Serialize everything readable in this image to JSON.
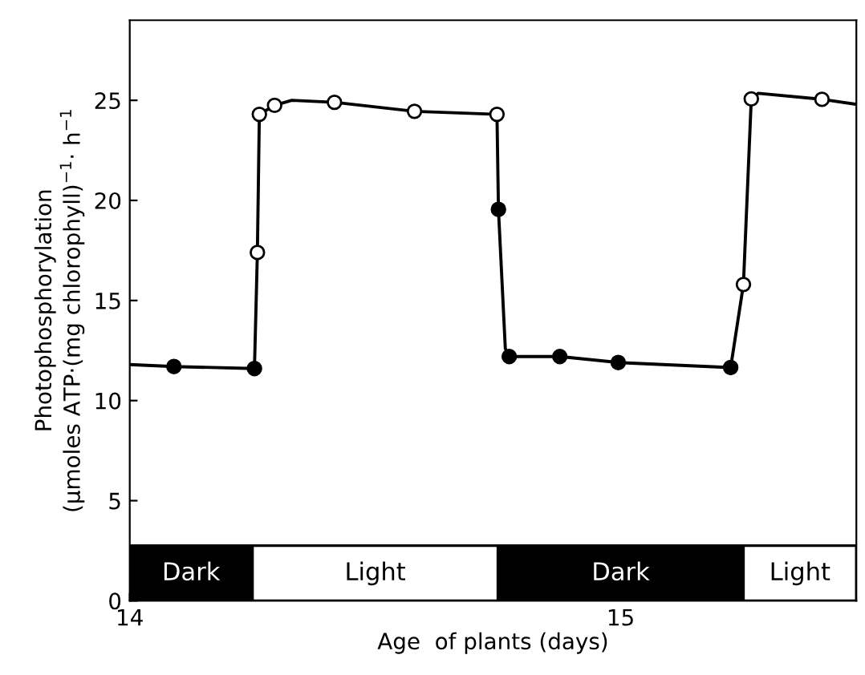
{
  "chart_data": {
    "type": "line",
    "xlabel": "Age  of plants (days)",
    "ylabel": "Photophosphorylation\n(μmoles ATP·(mg chlorophyll)$^{−1}$· h$^{−1}$",
    "xlim": [
      14,
      15.48
    ],
    "xticks": [
      14,
      15
    ],
    "ylim": [
      0,
      29
    ],
    "yticks": [
      0,
      5,
      10,
      15,
      20,
      25
    ],
    "grid": false,
    "series": [
      {
        "color": "#000000",
        "marker": "none",
        "line_style": "solid",
        "x": [
          14,
          14.09,
          14.254,
          14.26,
          14.264,
          14.295,
          14.33,
          14.417,
          14.58,
          14.748,
          14.751,
          14.765,
          14.773,
          14.876,
          14.995,
          15.224,
          15.25,
          15.266,
          15.28,
          15.41,
          15.48
        ],
        "values": [
          11.8,
          11.7,
          11.6,
          17.4,
          24.3,
          24.75,
          25.0,
          24.9,
          24.45,
          24.3,
          19.55,
          12.6,
          12.2,
          12.2,
          11.9,
          11.65,
          15.8,
          25.07,
          25.35,
          25.05,
          24.8
        ]
      },
      {
        "type": "scatter",
        "color": "#000000",
        "marker": "circle",
        "x": [
          14.09,
          14.254,
          14.751,
          14.773,
          14.876,
          14.995,
          15.224
        ],
        "values": [
          11.7,
          11.6,
          19.55,
          12.2,
          12.2,
          11.9,
          11.65
        ]
      },
      {
        "type": "scatter",
        "color": "#ffffff",
        "marker": "circle",
        "x": [
          14.26,
          14.264,
          14.295,
          14.417,
          14.58,
          14.748,
          15.25,
          15.266,
          15.41
        ],
        "values": [
          17.4,
          24.3,
          24.75,
          24.9,
          24.45,
          24.3,
          15.8,
          25.07,
          25.05
        ]
      }
    ],
    "bands": [
      {
        "axis": "x",
        "from": 14,
        "to": 14.25,
        "label": "Dark",
        "color": "#000000"
      },
      {
        "axis": "x",
        "from": 14.25,
        "to": 14.75,
        "label": "Light",
        "color": "#ffffff"
      },
      {
        "axis": "x",
        "from": 14.75,
        "to": 15.25,
        "label": "Dark",
        "color": "#000000"
      },
      {
        "axis": "x",
        "from": 15.25,
        "to": 15.48,
        "label": "Light",
        "color": "#ffffff"
      }
    ]
  }
}
